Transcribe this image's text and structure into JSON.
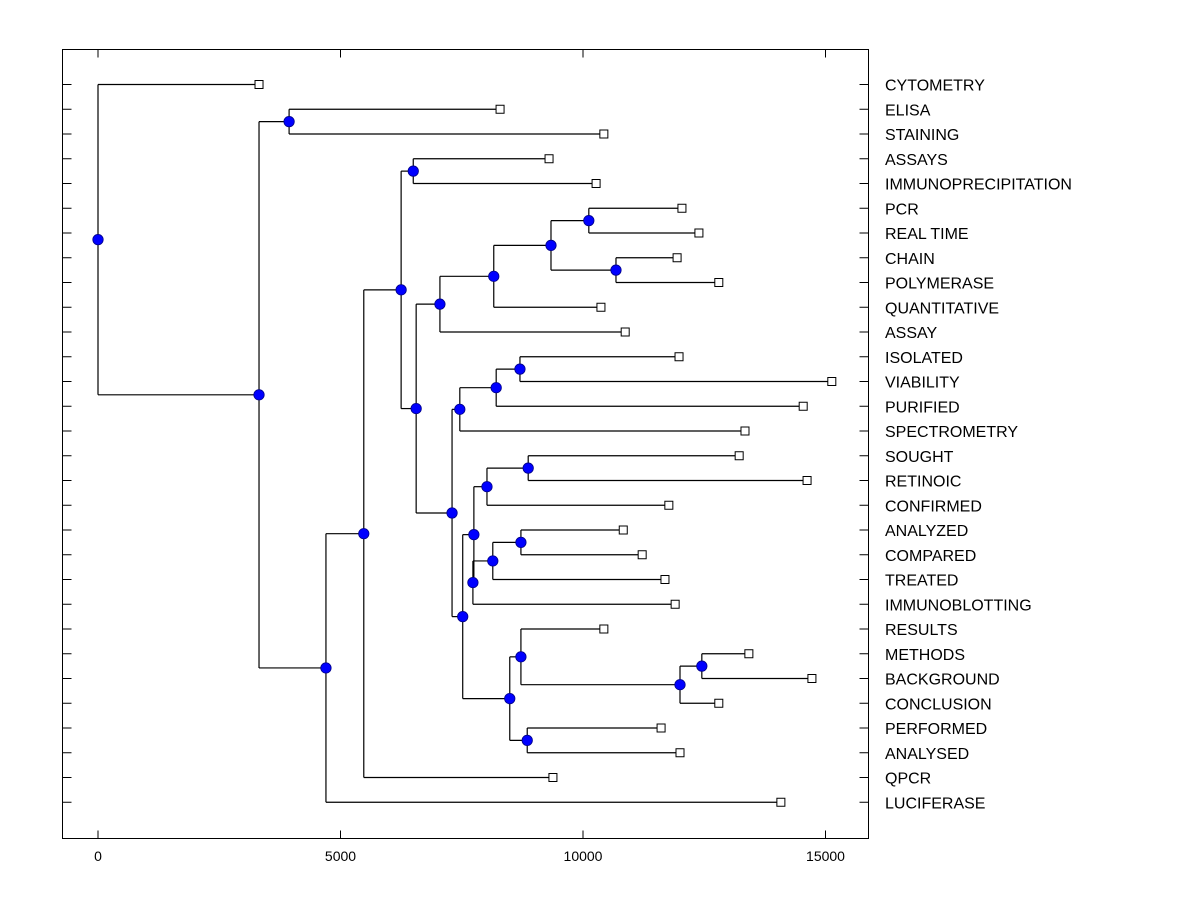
{
  "chart_data": {
    "type": "dendrogram",
    "title": "",
    "xlabel": "",
    "ylabel": "",
    "orientation": "left-to-right",
    "xlim": [
      -750,
      15800
    ],
    "x_ticks": [
      0,
      5000,
      10000,
      15000
    ],
    "x_tick_labels": [
      "0",
      "5000",
      "10000",
      "15000"
    ],
    "grid": false,
    "colors": {
      "node": "#0000ff",
      "leaf": "#ffffff",
      "line": "#000000"
    },
    "leaves": [
      {
        "label": "CYTOMETRY",
        "x": 3320
      },
      {
        "label": "ELISA",
        "x": 8290
      },
      {
        "label": "STAINING",
        "x": 10430
      },
      {
        "label": "ASSAYS",
        "x": 9300
      },
      {
        "label": "IMMUNOPRECIPITATION",
        "x": 10270
      },
      {
        "label": "PCR",
        "x": 12040
      },
      {
        "label": "REAL TIME",
        "x": 12390
      },
      {
        "label": "CHAIN",
        "x": 11940
      },
      {
        "label": "POLYMERASE",
        "x": 12800
      },
      {
        "label": "QUANTITATIVE",
        "x": 10370
      },
      {
        "label": "ASSAY",
        "x": 10870
      },
      {
        "label": "ISOLATED",
        "x": 11980
      },
      {
        "label": "VIABILITY",
        "x": 15130
      },
      {
        "label": "PURIFIED",
        "x": 14540
      },
      {
        "label": "SPECTROMETRY",
        "x": 13340
      },
      {
        "label": "SOUGHT",
        "x": 13220
      },
      {
        "label": "RETINOIC",
        "x": 14620
      },
      {
        "label": "CONFIRMED",
        "x": 11770
      },
      {
        "label": "ANALYZED",
        "x": 10830
      },
      {
        "label": "COMPARED",
        "x": 11220
      },
      {
        "label": "TREATED",
        "x": 11690
      },
      {
        "label": "IMMUNOBLOTTING",
        "x": 11900
      },
      {
        "label": "RESULTS",
        "x": 10430
      },
      {
        "label": "METHODS",
        "x": 13420
      },
      {
        "label": "BACKGROUND",
        "x": 14720
      },
      {
        "label": "CONCLUSION",
        "x": 12800
      },
      {
        "label": "PERFORMED",
        "x": 11610
      },
      {
        "label": "ANALYSED",
        "x": 12000
      },
      {
        "label": "QPCR",
        "x": 9380
      },
      {
        "label": "LUCIFERASE",
        "x": 14080
      }
    ],
    "tree": {
      "x": 0,
      "children": [
        {
          "leaf": 0
        },
        {
          "x": 3320,
          "children": [
            {
              "x": 3940,
              "children": [
                {
                  "leaf": 1
                },
                {
                  "leaf": 2
                }
              ]
            },
            {
              "x": 4700,
              "children": [
                {
                  "x": 5480,
                  "children": [
                    {
                      "x": 6250,
                      "children": [
                        {
                          "x": 6500,
                          "children": [
                            {
                              "leaf": 3
                            },
                            {
                              "leaf": 4
                            }
                          ]
                        },
                        {
                          "x": 6560,
                          "children": [
                            {
                              "x": 7050,
                              "children": [
                                {
                                  "x": 8160,
                                  "children": [
                                    {
                                      "x": 9340,
                                      "children": [
                                        {
                                          "x": 10120,
                                          "children": [
                                            {
                                              "leaf": 5
                                            },
                                            {
                                              "leaf": 6
                                            }
                                          ]
                                        },
                                        {
                                          "x": 10680,
                                          "children": [
                                            {
                                              "leaf": 7
                                            },
                                            {
                                              "leaf": 8
                                            }
                                          ]
                                        }
                                      ]
                                    },
                                    {
                                      "leaf": 9
                                    }
                                  ]
                                },
                                {
                                  "leaf": 10
                                }
                              ]
                            },
                            {
                              "x": 7300,
                              "children": [
                                {
                                  "x": 7460,
                                  "children": [
                                    {
                                      "x": 8210,
                                      "children": [
                                        {
                                          "x": 8700,
                                          "children": [
                                            {
                                              "leaf": 11
                                            },
                                            {
                                              "leaf": 12
                                            }
                                          ]
                                        },
                                        {
                                          "leaf": 13
                                        }
                                      ]
                                    },
                                    {
                                      "leaf": 14
                                    }
                                  ]
                                },
                                {
                                  "x": 7520,
                                  "children": [
                                    {
                                      "x": 7750,
                                      "children": [
                                        {
                                          "x": 8020,
                                          "children": [
                                            {
                                              "x": 8870,
                                              "children": [
                                                {
                                                  "leaf": 15
                                                },
                                                {
                                                  "leaf": 16
                                                }
                                              ]
                                            },
                                            {
                                              "leaf": 17
                                            }
                                          ]
                                        },
                                        {
                                          "x": 7730,
                                          "children": [
                                            {
                                              "x": 8140,
                                              "children": [
                                                {
                                                  "x": 8720,
                                                  "children": [
                                                    {
                                                      "leaf": 18
                                                    },
                                                    {
                                                      "leaf": 19
                                                    }
                                                  ]
                                                },
                                                {
                                                  "leaf": 20
                                                }
                                              ]
                                            },
                                            {
                                              "leaf": 21
                                            }
                                          ]
                                        }
                                      ]
                                    },
                                    {
                                      "x": 8490,
                                      "children": [
                                        {
                                          "x": 8720,
                                          "children": [
                                            {
                                              "leaf": 22
                                            },
                                            {
                                              "x": 12000,
                                              "children": [
                                                {
                                                  "x": 12450,
                                                  "children": [
                                                    {
                                                      "leaf": 23
                                                    },
                                                    {
                                                      "leaf": 24
                                                    }
                                                  ]
                                                },
                                                {
                                                  "leaf": 25
                                                }
                                              ]
                                            }
                                          ]
                                        },
                                        {
                                          "x": 8850,
                                          "children": [
                                            {
                                              "leaf": 26
                                            },
                                            {
                                              "leaf": 27
                                            }
                                          ]
                                        }
                                      ]
                                    }
                                  ]
                                }
                              ]
                            }
                          ]
                        }
                      ]
                    },
                    {
                      "leaf": 28
                    }
                  ]
                },
                {
                  "leaf": 29
                }
              ]
            }
          ]
        }
      ]
    }
  }
}
